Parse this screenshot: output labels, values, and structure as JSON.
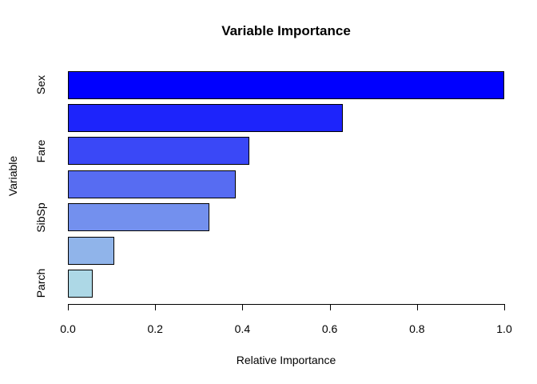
{
  "window": {
    "background_color": "#FFFFFF",
    "text_color": "#000000"
  },
  "chart_data": {
    "type": "bar",
    "orientation": "horizontal",
    "title": "Variable Importance",
    "xlabel": "Relative Importance",
    "ylabel": "Variable",
    "categories": [
      "Sex",
      "",
      "Fare",
      "",
      "SibSp",
      "",
      "Parch"
    ],
    "values": [
      1.0,
      0.63,
      0.415,
      0.385,
      0.325,
      0.107,
      0.057
    ],
    "bar_colors": [
      "#0000FF",
      "#1D24FB",
      "#3A48F7",
      "#576CF2",
      "#7390EE",
      "#90B4EA",
      "#ADD8E6"
    ],
    "bar_border_color": "#000000",
    "axis_color": "#000000",
    "xlim": [
      0.0,
      1.0
    ],
    "x_ticks": {
      "values": [
        0.0,
        0.2,
        0.4,
        0.6,
        0.8,
        1.0
      ],
      "labels": [
        "0.0",
        "0.2",
        "0.4",
        "0.6",
        "0.8",
        "1.0"
      ]
    },
    "grid": false,
    "legend": "none"
  }
}
